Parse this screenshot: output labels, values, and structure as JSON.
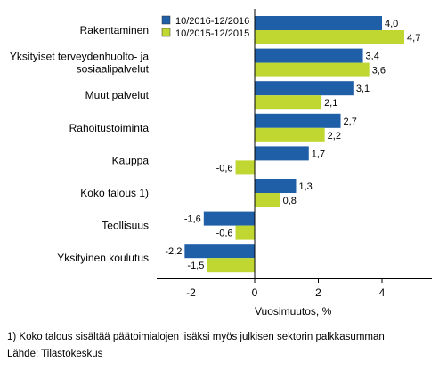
{
  "chart_data": {
    "type": "bar",
    "orientation": "horizontal",
    "categories": [
      [
        "Rakentaminen"
      ],
      [
        "Yksityiset terveydenhuolto- ja",
        "sosiaalipalvelut"
      ],
      [
        "Muut palvelut"
      ],
      [
        "Rahoitustoiminta"
      ],
      [
        "Kauppa"
      ],
      [
        "Koko talous 1)"
      ],
      [
        "Teollisuus"
      ],
      [
        "Yksityinen koulutus"
      ]
    ],
    "series": [
      {
        "name": "10/2016-12/2016",
        "color": "#1f5fa8",
        "values": [
          4.0,
          3.4,
          3.1,
          2.7,
          1.7,
          1.3,
          -1.6,
          -2.2
        ],
        "labels": [
          "4,0",
          "3,4",
          "3,1",
          "2,7",
          "1,7",
          "1,3",
          "-1,6",
          "-2,2"
        ]
      },
      {
        "name": "10/2015-12/2015",
        "color": "#bfd730",
        "values": [
          4.7,
          3.6,
          2.1,
          2.2,
          -0.6,
          0.8,
          -0.6,
          -1.5
        ],
        "labels": [
          "4,7",
          "3,6",
          "2,1",
          "2,2",
          "-0,6",
          "0,8",
          "-0,6",
          "-1,5"
        ]
      }
    ],
    "xlim": [
      -3.1,
      5.6
    ],
    "xticks": [
      -2,
      0,
      2,
      4
    ],
    "xtick_labels": [
      "-2",
      "0",
      "2",
      "4"
    ],
    "xlabel": "Vuosimuutos, %",
    "legend_position": "top-left inside plot",
    "grid": false
  },
  "footnotes": {
    "note": "1) Koko talous sisältää päätoimialojen lisäksi myös julkisen sektorin palkkasumman",
    "source": "Lähde: Tilastokeskus"
  }
}
